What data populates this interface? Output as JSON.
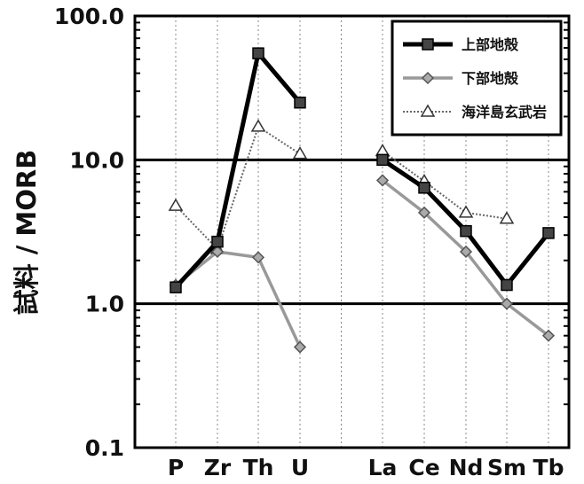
{
  "chart_data": {
    "type": "line",
    "y_scale": "log",
    "ylim": [
      0.1,
      100
    ],
    "ylabel": "試料 / MORB",
    "y_ticks": [
      "100.0",
      "10.0",
      "1.0",
      "0.1"
    ],
    "y_tick_values": [
      100,
      10,
      1,
      0.1
    ],
    "categories": [
      "P",
      "Zr",
      "Th",
      "U",
      "La",
      "Ce",
      "Nd",
      "Sm",
      "Tb"
    ],
    "gridlines": "vertical dotted lines at each category; solid horizontal lines at 1.0 and 10.0",
    "legend_position": "top-right",
    "series": [
      {
        "name": "上部地殻",
        "color": "#000000",
        "marker": "square",
        "line": "solid thick",
        "segments": [
          {
            "categories": [
              "P",
              "Zr",
              "Th",
              "U"
            ],
            "values": [
              1.3,
              2.7,
              55,
              25
            ]
          },
          {
            "categories": [
              "La",
              "Ce",
              "Nd",
              "Sm",
              "Tb"
            ],
            "values": [
              10,
              6.4,
              3.2,
              1.35,
              3.1
            ]
          }
        ]
      },
      {
        "name": "下部地殻",
        "color": "#999999",
        "marker": "diamond",
        "line": "solid",
        "segments": [
          {
            "categories": [
              "P",
              "Zr",
              "Th",
              "U"
            ],
            "values": [
              1.35,
              2.3,
              2.1,
              0.5
            ]
          },
          {
            "categories": [
              "La",
              "Ce",
              "Nd",
              "Sm",
              "Tb"
            ],
            "values": [
              7.2,
              4.3,
              2.3,
              1.0,
              0.6
            ]
          }
        ]
      },
      {
        "name": "海洋島玄武岩",
        "color": "#666666",
        "marker": "triangle-open",
        "line": "dotted",
        "segments": [
          {
            "categories": [
              "P",
              "Zr",
              "Th",
              "U"
            ],
            "values": [
              4.8,
              2.4,
              17,
              11
            ]
          },
          {
            "categories": [
              "La",
              "Ce",
              "Nd",
              "Sm"
            ],
            "values": [
              11.5,
              7.1,
              4.3,
              3.9
            ]
          }
        ]
      }
    ]
  }
}
